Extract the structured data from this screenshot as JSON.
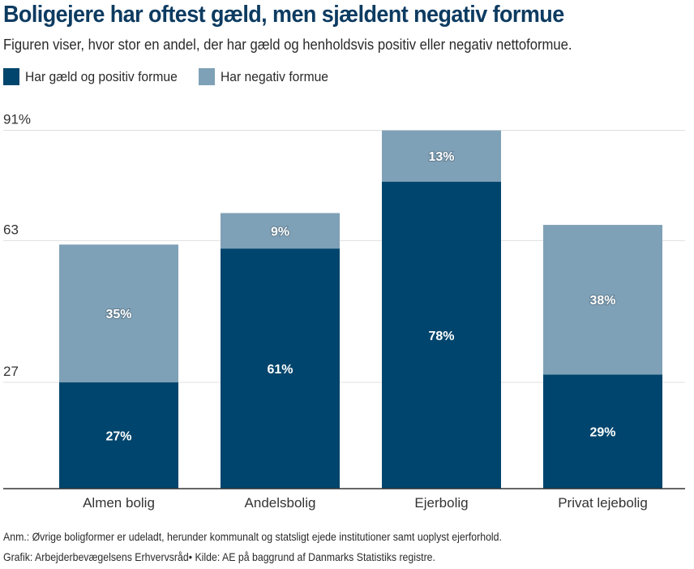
{
  "title": "Boligejere har oftest gæld, men sjældent negativ formue",
  "subtitle": "Figuren viser, hvor stor en andel, der har gæld og henholdsvis positiv eller negativ nettoformue.",
  "legend": [
    {
      "label": "Har gæld og positiv formue",
      "color": "#00456d"
    },
    {
      "label": "Har negativ formue",
      "color": "#7fa1b7"
    }
  ],
  "footer": {
    "note": "Anm.: Øvrige boligformer er udeladt, herunder kommunalt og statsligt ejede institutioner samt uoplyst ejerforhold.",
    "source": "Grafik: Arbejderbevægelsens Erhvervsråd• Kilde: AE på baggrund af Danmarks Statistiks registre."
  },
  "chart_data": {
    "type": "bar",
    "stacked": true,
    "title": "Boligejere har oftest gæld, men sjældent negativ formue",
    "xlabel": "",
    "ylabel": "",
    "categories": [
      "Almen bolig",
      "Andelsbolig",
      "Ejerbolig",
      "Privat lejebolig"
    ],
    "series": [
      {
        "name": "Har gæld og positiv formue",
        "values": [
          27,
          61,
          78,
          29
        ],
        "labels": [
          "27%",
          "61%",
          "78%",
          "29%"
        ],
        "color": "#00456d"
      },
      {
        "name": "Har negativ formue",
        "values": [
          35,
          9,
          13,
          38
        ],
        "labels": [
          "35%",
          "9%",
          "13%",
          "38%"
        ],
        "color": "#7fa1b7"
      }
    ],
    "yticks": [
      27,
      63,
      91
    ],
    "ytick_labels": [
      "27",
      "63",
      "91%"
    ],
    "ylim": [
      0,
      91
    ],
    "grid": true,
    "legend_position": "top-left"
  }
}
